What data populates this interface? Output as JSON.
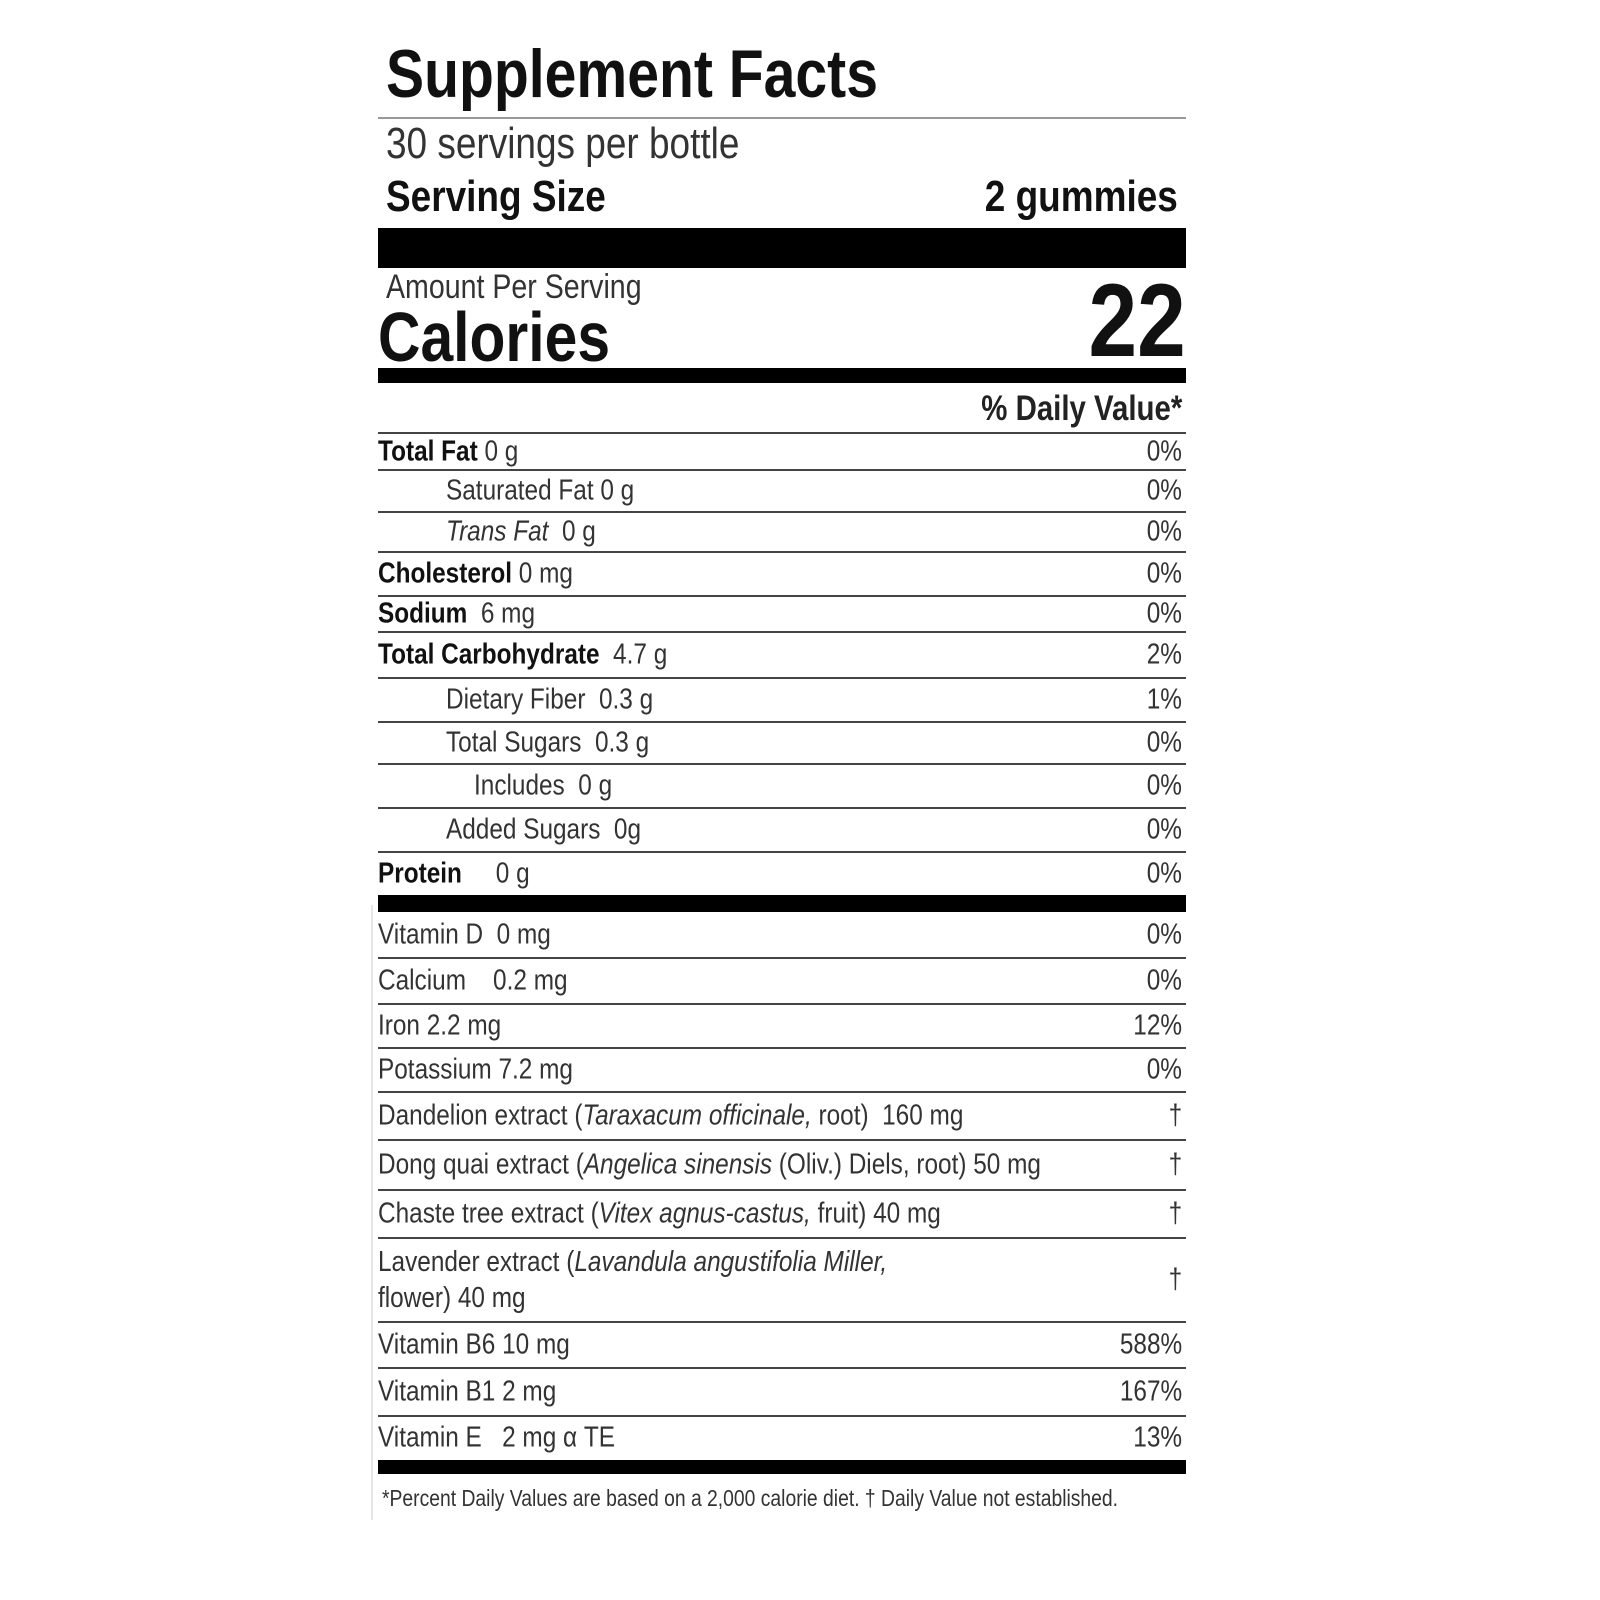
{
  "title": "Supplement Facts",
  "servings_per_container": "30 servings per bottle",
  "serving_size_label": "Serving Size",
  "serving_size_value": "2 gummies",
  "amount_per_serving": "Amount Per Serving",
  "calories_label": "Calories",
  "calories_value": "22",
  "daily_value_header": "% Daily Value*",
  "nutrients": [
    {
      "segments": [
        {
          "t": "Total Fat",
          "b": true
        },
        {
          "t": " 0 g"
        }
      ],
      "dv": "0%",
      "indent": 0
    },
    {
      "segments": [
        {
          "t": "Saturated Fat 0 g"
        }
      ],
      "dv": "0%",
      "indent": 1
    },
    {
      "segments": [
        {
          "t": "Trans Fat",
          "i": true
        },
        {
          "t": "  0 g"
        }
      ],
      "dv": "0%",
      "indent": 1
    },
    {
      "segments": [
        {
          "t": "Cholesterol",
          "b": true
        },
        {
          "t": " 0 mg"
        }
      ],
      "dv": "0%",
      "indent": 0
    },
    {
      "segments": [
        {
          "t": "Sodium",
          "b": true
        },
        {
          "t": "  6 mg"
        }
      ],
      "dv": "0%",
      "indent": 0
    },
    {
      "segments": [
        {
          "t": "Total Carbohydrate",
          "b": true
        },
        {
          "t": "  4.7 g"
        }
      ],
      "dv": "2%",
      "indent": 0
    },
    {
      "segments": [
        {
          "t": "Dietary Fiber  0.3 g"
        }
      ],
      "dv": "1%",
      "indent": 1
    },
    {
      "segments": [
        {
          "t": "Total Sugars  0.3 g"
        }
      ],
      "dv": "0%",
      "indent": 1
    },
    {
      "segments": [
        {
          "t": "Includes  0 g"
        }
      ],
      "dv": "0%",
      "indent": 2
    },
    {
      "segments": [
        {
          "t": "Added Sugars  0g"
        }
      ],
      "dv": "0%",
      "indent": 1
    },
    {
      "segments": [
        {
          "t": "Protein",
          "b": true
        },
        {
          "t": "     0 g"
        }
      ],
      "dv": "0%",
      "indent": 0
    }
  ],
  "ingredients": [
    {
      "segments": [
        {
          "t": "Vitamin D  0 mg"
        }
      ],
      "dv": "0%"
    },
    {
      "segments": [
        {
          "t": "Calcium    0.2 mg"
        }
      ],
      "dv": "0%"
    },
    {
      "segments": [
        {
          "t": "Iron 2.2 mg"
        }
      ],
      "dv": "12%"
    },
    {
      "segments": [
        {
          "t": "Potassium 7.2 mg"
        }
      ],
      "dv": "0%"
    },
    {
      "segments": [
        {
          "t": "Dandelion extract ("
        },
        {
          "t": "Taraxacum officinale,",
          "i": true
        },
        {
          "t": " root)  160 mg"
        }
      ],
      "dv": "†"
    },
    {
      "segments": [
        {
          "t": "Dong quai extract ("
        },
        {
          "t": "Angelica sinensis",
          "i": true
        },
        {
          "t": " (Oliv.) Diels, root) 50 mg"
        }
      ],
      "dv": "†"
    },
    {
      "segments": [
        {
          "t": "Chaste tree extract ("
        },
        {
          "t": "Vitex agnus-castus,",
          "i": true
        },
        {
          "t": " fruit) 40 mg"
        }
      ],
      "dv": "†"
    },
    {
      "segments": [
        {
          "t": "Lavender extract ("
        },
        {
          "t": "Lavandula angustifolia Miller,",
          "i": true
        },
        {
          "t": "\nflower) 40 mg"
        }
      ],
      "dv": "†"
    },
    {
      "segments": [
        {
          "t": "Vitamin B6 10 mg"
        }
      ],
      "dv": "588%"
    },
    {
      "segments": [
        {
          "t": "Vitamin B1 2 mg"
        }
      ],
      "dv": "167%"
    },
    {
      "segments": [
        {
          "t": "Vitamin E   2 mg α TE"
        }
      ],
      "dv": "13%"
    }
  ],
  "footnote": "*Percent Daily Values are based on a 2,000 calorie diet. † Daily Value not established."
}
